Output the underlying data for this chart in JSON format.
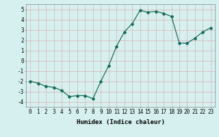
{
  "x": [
    0,
    1,
    2,
    3,
    4,
    5,
    6,
    7,
    8,
    9,
    10,
    11,
    12,
    13,
    14,
    15,
    16,
    17,
    18,
    19,
    20,
    21,
    22,
    23
  ],
  "y": [
    -2.0,
    -2.2,
    -2.5,
    -2.6,
    -2.9,
    -3.5,
    -3.4,
    -3.4,
    -3.7,
    -2.0,
    -0.5,
    1.4,
    2.8,
    3.6,
    4.9,
    4.7,
    4.8,
    4.6,
    4.3,
    1.7,
    1.7,
    2.2,
    2.8,
    3.2
  ],
  "line_color": "#1a6b5a",
  "marker": "D",
  "marker_size": 2,
  "bg_color": "#d6f0f0",
  "grid_color": "#c0e0e0",
  "grid_major_color": "#b8d8d8",
  "xlabel": "Humidex (Indice chaleur)",
  "ylim": [
    -4.5,
    5.5
  ],
  "xlim": [
    -0.5,
    23.5
  ],
  "yticks": [
    -4,
    -3,
    -2,
    -1,
    0,
    1,
    2,
    3,
    4,
    5
  ],
  "xticks": [
    0,
    1,
    2,
    3,
    4,
    5,
    6,
    7,
    8,
    9,
    10,
    11,
    12,
    13,
    14,
    15,
    16,
    17,
    18,
    19,
    20,
    21,
    22,
    23
  ],
  "tick_fontsize": 5.5,
  "xlabel_fontsize": 6.5,
  "font_family": "monospace"
}
